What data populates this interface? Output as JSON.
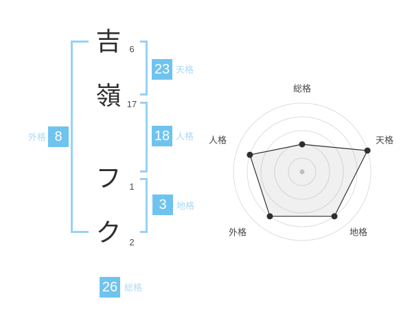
{
  "name_analysis": {
    "characters": [
      {
        "char": "吉",
        "strokes": "6"
      },
      {
        "char": "嶺",
        "strokes": "17"
      },
      {
        "char": "フ",
        "strokes": "1"
      },
      {
        "char": "ク",
        "strokes": "2"
      }
    ],
    "values": {
      "tenkaku": {
        "label": "天格",
        "value": "23"
      },
      "jinkaku": {
        "label": "人格",
        "value": "18"
      },
      "chikaku": {
        "label": "地格",
        "value": "3"
      },
      "gaikaku": {
        "label": "外格",
        "value": "8"
      },
      "soukaku": {
        "label": "総格",
        "value": "26"
      }
    }
  },
  "chart_data": {
    "type": "radar",
    "axes": [
      "総格",
      "天格",
      "地格",
      "外格",
      "人格"
    ],
    "values": [
      2,
      5,
      4,
      4,
      4
    ],
    "max": 5,
    "rings": 5,
    "start": "top",
    "direction": "clockwise",
    "grid": "concentric-circles",
    "legend": false,
    "title": ""
  },
  "colors": {
    "value_box_blue": "#6fc3ef",
    "value_label_blue": "#a9daf8",
    "bracket_blue": "#96d1f5",
    "chart_line": "#2f2f2f",
    "chart_grid": "#dddddd",
    "chart_center_dot": "#c8c8c8",
    "chart_label_text": "#444444",
    "name_text": "#2f2f2f",
    "background": "#ffffff"
  }
}
